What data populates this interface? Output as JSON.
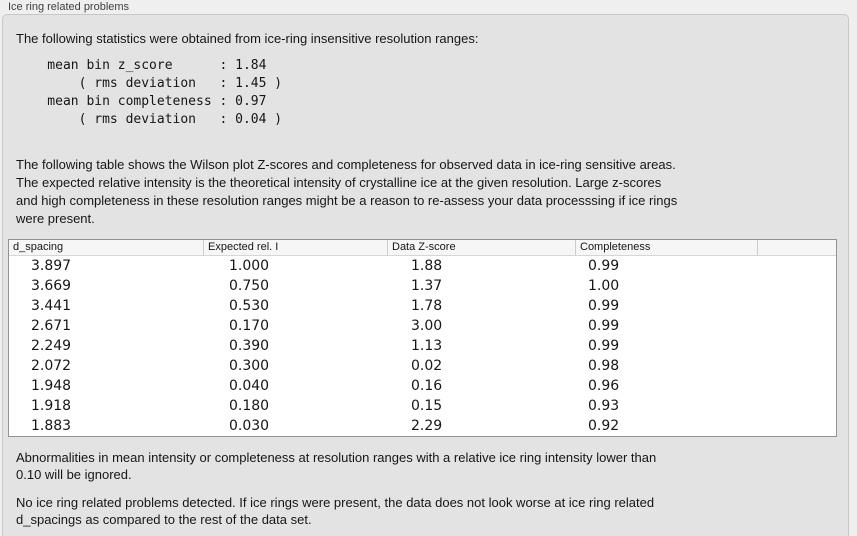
{
  "panel": {
    "title": "Ice ring related problems"
  },
  "intro": "The following statistics were obtained from ice-ring insensitive resolution ranges:",
  "stats_block": "    mean bin z_score      : 1.84\n        ( rms deviation   : 1.45 )\n    mean bin completeness : 0.97\n        ( rms deviation   : 0.04 )",
  "description": "The following table shows the Wilson plot Z-scores and completeness for observed data in ice-ring sensitive areas.\nThe expected relative intensity is the theoretical intensity of crystalline ice at the given resolution. Large z-scores\nand high completeness in these resolution ranges might be a reason to re-assess your data processsing if ice rings\nwere present.",
  "table": {
    "columns": [
      "d_spacing",
      "Expected rel. I",
      "Data Z-score",
      "Completeness"
    ],
    "rows": [
      [
        "3.897",
        "1.000",
        "1.88",
        "0.99"
      ],
      [
        "3.669",
        "0.750",
        "1.37",
        "1.00"
      ],
      [
        "3.441",
        "0.530",
        "1.78",
        "0.99"
      ],
      [
        "2.671",
        "0.170",
        "3.00",
        "0.99"
      ],
      [
        "2.249",
        "0.390",
        "1.13",
        "0.99"
      ],
      [
        "2.072",
        "0.300",
        "0.02",
        "0.98"
      ],
      [
        "1.948",
        "0.040",
        "0.16",
        "0.96"
      ],
      [
        "1.918",
        "0.180",
        "0.15",
        "0.93"
      ],
      [
        "1.883",
        "0.030",
        "2.29",
        "0.92"
      ]
    ]
  },
  "note_ignore": "Abnormalities in mean intensity or completeness at resolution ranges with a relative ice ring intensity lower than\n0.10 will be ignored.",
  "conclusion": "No ice ring related problems detected. If ice rings were present, the data does not look worse at ice ring related\nd_spacings as compared to the rest of the data set.",
  "colors": {
    "outer_bg": "#efefef",
    "panel_bg": "#e3e3e3",
    "panel_border": "#c7c7c7",
    "text": "#161616",
    "title": "#404040",
    "table_border": "#929292",
    "header_bg": "#f6f6f6",
    "header_sep": "#cccccc",
    "table_bg": "#ffffff"
  }
}
